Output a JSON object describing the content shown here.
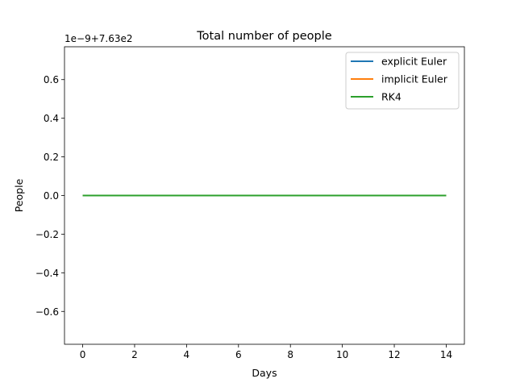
{
  "chart_data": {
    "type": "line",
    "title": "Total number of people",
    "xlabel": "Days",
    "ylabel": "People",
    "offset_label": "1e−9+7.63e2",
    "xlim": [
      -0.7,
      14.7
    ],
    "ylim": [
      -0.77,
      0.77
    ],
    "x_ticks": [
      0,
      2,
      4,
      6,
      8,
      10,
      12,
      14
    ],
    "x_tick_labels": [
      "0",
      "2",
      "4",
      "6",
      "8",
      "10",
      "12",
      "14"
    ],
    "y_ticks": [
      -0.6,
      -0.4,
      -0.2,
      0.0,
      0.2,
      0.4,
      0.6
    ],
    "y_tick_labels": [
      "−0.6",
      "−0.4",
      "−0.2",
      "0.0",
      "0.2",
      "0.4",
      "0.6"
    ],
    "grid": false,
    "legend_position": "top-right",
    "x": [
      0,
      14
    ],
    "series": [
      {
        "name": "explicit Euler",
        "color": "#1f77b4",
        "values": [
          0,
          0
        ]
      },
      {
        "name": "implicit Euler",
        "color": "#ff7f0e",
        "values": [
          0,
          0
        ]
      },
      {
        "name": "RK4",
        "color": "#2ca02c",
        "values": [
          0,
          0
        ]
      }
    ]
  }
}
